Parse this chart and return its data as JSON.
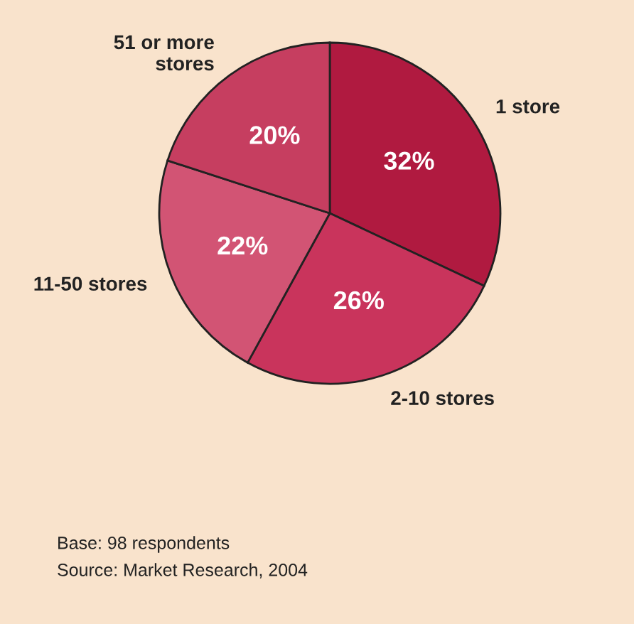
{
  "chart_data": {
    "type": "pie",
    "categories": [
      "1 store",
      "2-10 stores",
      "11-50 stores",
      "51 or more\nstores"
    ],
    "values": [
      32,
      26,
      22,
      20
    ],
    "value_labels": [
      "32%",
      "26%",
      "22%",
      "20%"
    ],
    "colors": [
      "#b01a40",
      "#c9345c",
      "#d25474",
      "#c63e60"
    ],
    "annotations": [
      "Base: 98 respondents",
      "Source: Market Research, 2004"
    ]
  }
}
